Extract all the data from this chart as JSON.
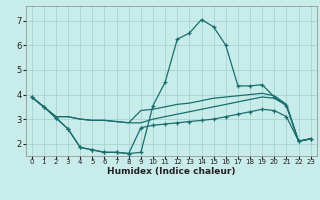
{
  "xlabel": "Humidex (Indice chaleur)",
  "xlim": [
    -0.5,
    23.5
  ],
  "ylim": [
    1.5,
    7.6
  ],
  "yticks": [
    2,
    3,
    4,
    5,
    6,
    7
  ],
  "xticks": [
    0,
    1,
    2,
    3,
    4,
    5,
    6,
    7,
    8,
    9,
    10,
    11,
    12,
    13,
    14,
    15,
    16,
    17,
    18,
    19,
    20,
    21,
    22,
    23
  ],
  "background_color": "#c8ecea",
  "grid_color": "#a8d4d0",
  "line_color": "#1a6e6e",
  "line1_x": [
    0,
    1,
    2,
    3,
    4,
    5,
    6,
    7,
    8,
    9,
    10,
    11,
    12,
    13,
    14,
    15,
    16,
    17,
    18,
    19,
    20,
    21,
    22,
    23
  ],
  "line1_y": [
    3.9,
    3.5,
    3.05,
    2.6,
    1.85,
    1.75,
    1.65,
    1.65,
    1.6,
    1.65,
    3.55,
    4.5,
    6.25,
    6.5,
    7.05,
    6.75,
    6.0,
    4.35,
    4.35,
    4.4,
    3.9,
    3.55,
    2.1,
    2.2
  ],
  "line2_x": [
    0,
    1,
    2,
    3,
    4,
    5,
    6,
    7,
    8,
    9,
    10,
    11,
    12,
    13,
    14,
    15,
    16,
    17,
    18,
    19,
    20,
    21,
    22,
    23
  ],
  "line2_y": [
    3.9,
    3.5,
    3.1,
    3.1,
    3.0,
    2.95,
    2.95,
    2.9,
    2.85,
    3.35,
    3.4,
    3.5,
    3.6,
    3.65,
    3.75,
    3.85,
    3.9,
    3.95,
    4.0,
    4.05,
    3.95,
    3.6,
    2.1,
    2.2
  ],
  "line3_x": [
    0,
    1,
    2,
    3,
    4,
    5,
    6,
    7,
    8,
    9,
    10,
    11,
    12,
    13,
    14,
    15,
    16,
    17,
    18,
    19,
    20,
    21,
    22,
    23
  ],
  "line3_y": [
    3.9,
    3.5,
    3.1,
    3.1,
    3.0,
    2.95,
    2.95,
    2.9,
    2.85,
    2.85,
    3.0,
    3.1,
    3.2,
    3.3,
    3.4,
    3.5,
    3.6,
    3.7,
    3.8,
    3.9,
    3.85,
    3.55,
    2.1,
    2.2
  ],
  "line4_x": [
    0,
    1,
    2,
    3,
    4,
    5,
    6,
    7,
    8,
    9,
    10,
    11,
    12,
    13,
    14,
    15,
    16,
    17,
    18,
    19,
    20,
    21,
    22,
    23
  ],
  "line4_y": [
    3.9,
    3.5,
    3.05,
    2.6,
    1.85,
    1.75,
    1.65,
    1.65,
    1.6,
    2.65,
    2.75,
    2.8,
    2.85,
    2.9,
    2.95,
    3.0,
    3.1,
    3.2,
    3.3,
    3.4,
    3.35,
    3.1,
    2.1,
    2.2
  ]
}
